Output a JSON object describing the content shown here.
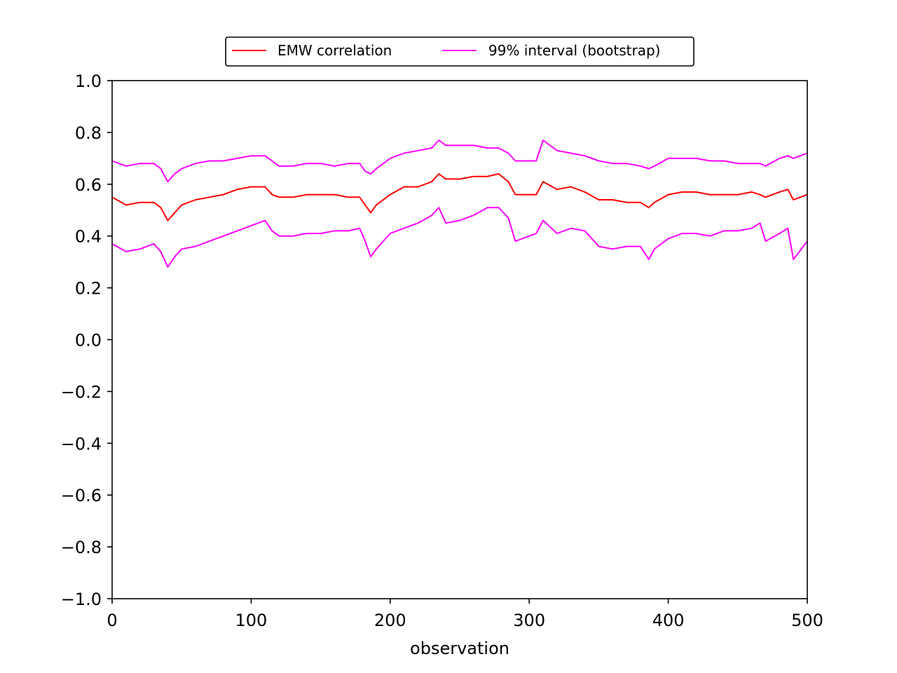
{
  "chart_data": {
    "type": "line",
    "title": "",
    "xlabel": "observation",
    "ylabel": "",
    "xlim": [
      0,
      500
    ],
    "ylim": [
      -1.0,
      1.0
    ],
    "grid": false,
    "legend_position": "top-center",
    "x_ticks": [
      0,
      100,
      200,
      300,
      400,
      500
    ],
    "y_ticks": [
      -1.0,
      -0.8,
      -0.6,
      -0.4,
      -0.2,
      0.0,
      0.2,
      0.4,
      0.6,
      0.8,
      1.0
    ],
    "x_tick_labels": [
      "0",
      "100",
      "200",
      "300",
      "400",
      "500"
    ],
    "y_tick_labels": [
      "−1.0",
      "−0.8",
      "−0.6",
      "−0.4",
      "−0.2",
      "0.0",
      "0.2",
      "0.4",
      "0.6",
      "0.8",
      "1.0"
    ],
    "x": [
      0,
      10,
      20,
      30,
      35,
      40,
      45,
      50,
      60,
      70,
      80,
      90,
      100,
      110,
      115,
      120,
      130,
      140,
      150,
      160,
      170,
      178,
      182,
      186,
      190,
      200,
      210,
      220,
      230,
      235,
      240,
      250,
      260,
      270,
      278,
      285,
      290,
      300,
      305,
      310,
      320,
      330,
      340,
      350,
      360,
      370,
      380,
      386,
      390,
      400,
      410,
      420,
      430,
      440,
      450,
      460,
      466,
      470,
      480,
      486,
      490,
      500
    ],
    "series": [
      {
        "name": "EMW correlation",
        "color": "#ff0000",
        "values": [
          0.55,
          0.52,
          0.53,
          0.53,
          0.51,
          0.46,
          0.49,
          0.52,
          0.54,
          0.55,
          0.56,
          0.58,
          0.59,
          0.59,
          0.56,
          0.55,
          0.55,
          0.56,
          0.56,
          0.56,
          0.55,
          0.55,
          0.52,
          0.49,
          0.52,
          0.56,
          0.59,
          0.59,
          0.61,
          0.64,
          0.62,
          0.62,
          0.63,
          0.63,
          0.64,
          0.61,
          0.56,
          0.56,
          0.56,
          0.61,
          0.58,
          0.59,
          0.57,
          0.54,
          0.54,
          0.53,
          0.53,
          0.51,
          0.53,
          0.56,
          0.57,
          0.57,
          0.56,
          0.56,
          0.56,
          0.57,
          0.56,
          0.55,
          0.57,
          0.58,
          0.54,
          0.56
        ]
      },
      {
        "name": "99% interval (bootstrap)",
        "color": "#ff00ff",
        "values": [
          0.69,
          0.67,
          0.68,
          0.68,
          0.66,
          0.61,
          0.64,
          0.66,
          0.68,
          0.69,
          0.69,
          0.7,
          0.71,
          0.71,
          0.69,
          0.67,
          0.67,
          0.68,
          0.68,
          0.67,
          0.68,
          0.68,
          0.65,
          0.64,
          0.66,
          0.7,
          0.72,
          0.73,
          0.74,
          0.77,
          0.75,
          0.75,
          0.75,
          0.74,
          0.74,
          0.72,
          0.69,
          0.69,
          0.69,
          0.77,
          0.73,
          0.72,
          0.71,
          0.69,
          0.68,
          0.68,
          0.67,
          0.66,
          0.67,
          0.7,
          0.7,
          0.7,
          0.69,
          0.69,
          0.68,
          0.68,
          0.68,
          0.67,
          0.7,
          0.71,
          0.7,
          0.72
        ]
      },
      {
        "name": "",
        "color": "#ff00ff",
        "values": [
          0.37,
          0.34,
          0.35,
          0.37,
          0.34,
          0.28,
          0.32,
          0.35,
          0.36,
          0.38,
          0.4,
          0.42,
          0.44,
          0.46,
          0.42,
          0.4,
          0.4,
          0.41,
          0.41,
          0.42,
          0.42,
          0.43,
          0.38,
          0.32,
          0.35,
          0.41,
          0.43,
          0.45,
          0.48,
          0.51,
          0.45,
          0.46,
          0.48,
          0.51,
          0.51,
          0.47,
          0.38,
          0.4,
          0.41,
          0.46,
          0.41,
          0.43,
          0.42,
          0.36,
          0.35,
          0.36,
          0.36,
          0.31,
          0.35,
          0.39,
          0.41,
          0.41,
          0.4,
          0.42,
          0.42,
          0.43,
          0.45,
          0.38,
          0.41,
          0.43,
          0.31,
          0.38
        ]
      }
    ],
    "legend": [
      {
        "label": "EMW correlation",
        "color": "#ff0000"
      },
      {
        "label": "99% interval (bootstrap)",
        "color": "#ff00ff"
      }
    ]
  }
}
